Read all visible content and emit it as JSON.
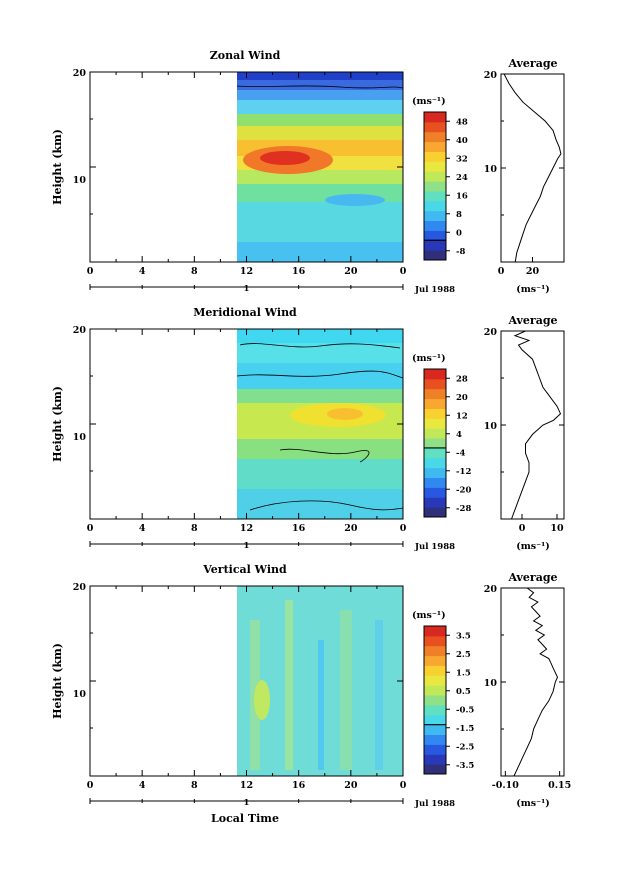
{
  "chart_data": [
    {
      "type": "heatmap",
      "title": "Zonal Wind",
      "ylabel": "Height (km)",
      "y_ticks": [
        "20",
        "10"
      ],
      "ylim": [
        0,
        20
      ],
      "x_ticks": [
        "0",
        "4",
        "8",
        "12",
        "16",
        "20",
        "0"
      ],
      "xlim": [
        0,
        24
      ],
      "data_start_hour": 11.5,
      "date_ticks": [
        "1"
      ],
      "date_label": "Jul 1988",
      "colorbar": {
        "unit": "(ms⁻¹)",
        "labels": [
          "48",
          "40",
          "32",
          "24",
          "16",
          "8",
          "0",
          "-8"
        ],
        "levels": [
          -8,
          -4,
          0,
          4,
          8,
          12,
          16,
          20,
          24,
          28,
          32,
          36,
          40,
          44,
          48,
          52
        ]
      },
      "profile": {
        "title": "Average",
        "x_ticks": [
          "0",
          "20"
        ],
        "xlim": [
          0,
          40
        ],
        "x_unit": "(ms⁻¹)",
        "y_ticks": [
          "20",
          "10"
        ],
        "points": [
          [
            2,
            20
          ],
          [
            5,
            19
          ],
          [
            9,
            18
          ],
          [
            14,
            17
          ],
          [
            21,
            16
          ],
          [
            28,
            15
          ],
          [
            33,
            14
          ],
          [
            35,
            13
          ],
          [
            37,
            12.2
          ],
          [
            38,
            11.5
          ],
          [
            36,
            11
          ],
          [
            33,
            10
          ],
          [
            30,
            9
          ],
          [
            27,
            8
          ],
          [
            25,
            7
          ],
          [
            22,
            6
          ],
          [
            19,
            5
          ],
          [
            16,
            4
          ],
          [
            14,
            3
          ],
          [
            12,
            2
          ],
          [
            10,
            1
          ],
          [
            9,
            0
          ]
        ]
      }
    },
    {
      "type": "heatmap",
      "title": "Meridional Wind",
      "ylabel": "Height (km)",
      "y_ticks": [
        "20",
        "10"
      ],
      "ylim": [
        0,
        20
      ],
      "x_ticks": [
        "0",
        "4",
        "8",
        "12",
        "16",
        "20",
        "0"
      ],
      "xlim": [
        0,
        24
      ],
      "data_start_hour": 11.5,
      "date_ticks": [
        "1"
      ],
      "date_label": "Jul 1988",
      "colorbar": {
        "unit": "(ms⁻¹)",
        "labels": [
          "28",
          "20",
          "12",
          "4",
          "-4",
          "-12",
          "-20",
          "-28"
        ],
        "levels": [
          -28,
          -24,
          -20,
          -16,
          -12,
          -8,
          -4,
          0,
          4,
          8,
          12,
          16,
          20,
          24,
          28,
          32
        ]
      },
      "profile": {
        "title": "Average",
        "x_ticks": [
          "0",
          "10"
        ],
        "xlim": [
          -6,
          12
        ],
        "x_unit": "(ms⁻¹)",
        "y_ticks": [
          "20",
          "10"
        ],
        "points": [
          [
            1,
            20
          ],
          [
            -2,
            19.5
          ],
          [
            2,
            19
          ],
          [
            -1,
            18.5
          ],
          [
            0,
            18
          ],
          [
            3,
            17
          ],
          [
            4,
            16
          ],
          [
            5,
            15
          ],
          [
            6,
            14
          ],
          [
            8,
            13
          ],
          [
            10,
            12
          ],
          [
            11,
            11.2
          ],
          [
            9,
            10.5
          ],
          [
            6,
            10
          ],
          [
            3,
            9
          ],
          [
            1,
            8
          ],
          [
            1,
            7
          ],
          [
            2,
            6
          ],
          [
            2,
            5
          ],
          [
            1,
            4
          ],
          [
            0,
            3
          ],
          [
            -1,
            2
          ],
          [
            -2,
            1
          ],
          [
            -3,
            0
          ]
        ]
      }
    },
    {
      "type": "heatmap",
      "title": "Vertical Wind",
      "ylabel": "Height (km)",
      "xlabel": "Local Time",
      "y_ticks": [
        "20",
        "10"
      ],
      "ylim": [
        0,
        20
      ],
      "x_ticks": [
        "0",
        "4",
        "8",
        "12",
        "16",
        "20",
        "0"
      ],
      "xlim": [
        0,
        24
      ],
      "data_start_hour": 11.5,
      "date_ticks": [
        "1"
      ],
      "date_label": "Jul 1988",
      "colorbar": {
        "unit": "(ms⁻¹)",
        "labels": [
          "3.5",
          "2.5",
          "1.5",
          "0.5",
          "-0.5",
          "-1.5",
          "-2.5",
          "-3.5"
        ],
        "levels": [
          -3.5,
          -3.0,
          -2.5,
          -2.0,
          -1.5,
          -1.0,
          -0.5,
          0,
          0.5,
          1.0,
          1.5,
          2.0,
          2.5,
          3.0,
          3.5,
          4.0
        ]
      },
      "profile": {
        "title": "Average",
        "x_ticks": [
          "-0.10",
          "0.15"
        ],
        "xlim": [
          -0.12,
          0.17
        ],
        "x_unit": "(ms⁻¹)",
        "y_ticks": [
          "20",
          "10"
        ],
        "points": [
          [
            0.0,
            20
          ],
          [
            0.03,
            19.5
          ],
          [
            0.01,
            19
          ],
          [
            0.05,
            18.5
          ],
          [
            0.02,
            18
          ],
          [
            0.04,
            17.5
          ],
          [
            0.06,
            17
          ],
          [
            0.03,
            16.5
          ],
          [
            0.07,
            16
          ],
          [
            0.04,
            15.5
          ],
          [
            0.08,
            15
          ],
          [
            0.05,
            14.5
          ],
          [
            0.07,
            14
          ],
          [
            0.09,
            13.5
          ],
          [
            0.06,
            13
          ],
          [
            0.1,
            12.5
          ],
          [
            0.11,
            12
          ],
          [
            0.12,
            11.5
          ],
          [
            0.13,
            11
          ],
          [
            0.14,
            10.5
          ],
          [
            0.13,
            10
          ],
          [
            0.12,
            9
          ],
          [
            0.1,
            8
          ],
          [
            0.07,
            7
          ],
          [
            0.05,
            6
          ],
          [
            0.03,
            5
          ],
          [
            0.02,
            4
          ],
          [
            0.0,
            3
          ],
          [
            -0.02,
            2
          ],
          [
            -0.04,
            1
          ],
          [
            -0.06,
            0
          ]
        ]
      }
    }
  ]
}
